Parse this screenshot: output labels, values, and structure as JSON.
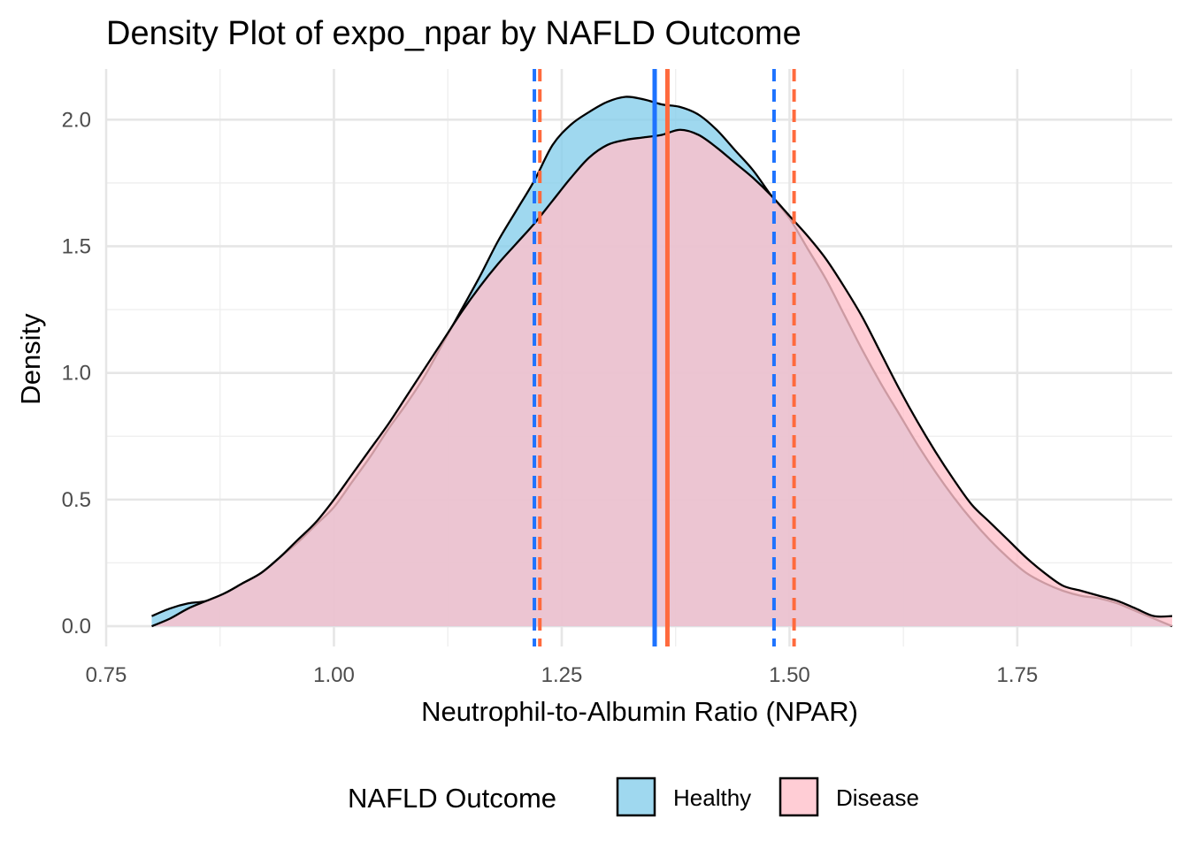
{
  "chart_data": {
    "type": "area",
    "title": "Density Plot of expo_npar by NAFLD Outcome",
    "xlabel": "Neutrophil-to-Albumin Ratio (NPAR)",
    "ylabel": "Density",
    "xlim": [
      0.75,
      1.92
    ],
    "ylim": [
      -0.08,
      2.2
    ],
    "x_ticks": [
      0.75,
      1.0,
      1.25,
      1.5,
      1.75
    ],
    "x_tick_labels": [
      "0.75",
      "1.00",
      "1.25",
      "1.50",
      "1.75"
    ],
    "y_ticks": [
      0.0,
      0.5,
      1.0,
      1.5,
      2.0
    ],
    "y_tick_labels": [
      "0.0",
      "0.5",
      "1.0",
      "1.5",
      "2.0"
    ],
    "grid": true,
    "legend": {
      "title": "NAFLD Outcome",
      "position": "bottom"
    },
    "series": [
      {
        "name": "Healthy",
        "fill": "#87CEEB",
        "fill_opacity": 0.8,
        "line_color": "#1E73FF",
        "mean": 1.352,
        "ci": [
          1.22,
          1.483
        ],
        "x": [
          0.8,
          0.82,
          0.84,
          0.86,
          0.88,
          0.9,
          0.92,
          0.94,
          0.96,
          0.98,
          1.0,
          1.02,
          1.04,
          1.06,
          1.08,
          1.1,
          1.12,
          1.14,
          1.16,
          1.18,
          1.2,
          1.22,
          1.24,
          1.26,
          1.28,
          1.3,
          1.32,
          1.34,
          1.36,
          1.38,
          1.4,
          1.42,
          1.44,
          1.46,
          1.48,
          1.5,
          1.52,
          1.54,
          1.56,
          1.58,
          1.6,
          1.62,
          1.64,
          1.66,
          1.68,
          1.7,
          1.72,
          1.74,
          1.76,
          1.78,
          1.8,
          1.82,
          1.84,
          1.86,
          1.88,
          1.9,
          1.92
        ],
        "y": [
          0.04,
          0.07,
          0.09,
          0.1,
          0.13,
          0.17,
          0.21,
          0.27,
          0.33,
          0.4,
          0.47,
          0.57,
          0.67,
          0.78,
          0.88,
          0.99,
          1.12,
          1.25,
          1.38,
          1.52,
          1.64,
          1.76,
          1.9,
          1.98,
          2.03,
          2.07,
          2.09,
          2.08,
          2.06,
          2.05,
          2.02,
          1.96,
          1.88,
          1.8,
          1.7,
          1.61,
          1.49,
          1.37,
          1.23,
          1.09,
          0.96,
          0.84,
          0.72,
          0.61,
          0.51,
          0.42,
          0.34,
          0.27,
          0.21,
          0.17,
          0.14,
          0.12,
          0.11,
          0.09,
          0.06,
          0.03,
          0.0
        ]
      },
      {
        "name": "Disease",
        "fill": "#FFC0CB",
        "fill_opacity": 0.8,
        "line_color": "#FF6A3D",
        "mean": 1.366,
        "ci": [
          1.226,
          1.505
        ],
        "x": [
          0.8,
          0.82,
          0.84,
          0.86,
          0.88,
          0.9,
          0.92,
          0.94,
          0.96,
          0.98,
          1.0,
          1.02,
          1.04,
          1.06,
          1.08,
          1.1,
          1.12,
          1.14,
          1.16,
          1.18,
          1.2,
          1.22,
          1.24,
          1.26,
          1.28,
          1.3,
          1.32,
          1.34,
          1.36,
          1.38,
          1.4,
          1.42,
          1.44,
          1.46,
          1.48,
          1.5,
          1.52,
          1.54,
          1.56,
          1.58,
          1.6,
          1.62,
          1.64,
          1.66,
          1.68,
          1.7,
          1.72,
          1.74,
          1.76,
          1.78,
          1.8,
          1.82,
          1.84,
          1.86,
          1.88,
          1.9,
          1.92
        ],
        "y": [
          0.0,
          0.03,
          0.07,
          0.1,
          0.13,
          0.17,
          0.21,
          0.27,
          0.34,
          0.41,
          0.5,
          0.6,
          0.7,
          0.8,
          0.91,
          1.02,
          1.13,
          1.24,
          1.34,
          1.43,
          1.51,
          1.59,
          1.68,
          1.77,
          1.85,
          1.9,
          1.92,
          1.93,
          1.94,
          1.96,
          1.94,
          1.89,
          1.83,
          1.77,
          1.7,
          1.62,
          1.54,
          1.45,
          1.34,
          1.22,
          1.08,
          0.94,
          0.81,
          0.69,
          0.58,
          0.48,
          0.41,
          0.34,
          0.27,
          0.21,
          0.16,
          0.14,
          0.12,
          0.1,
          0.07,
          0.04,
          0.04
        ]
      }
    ]
  }
}
